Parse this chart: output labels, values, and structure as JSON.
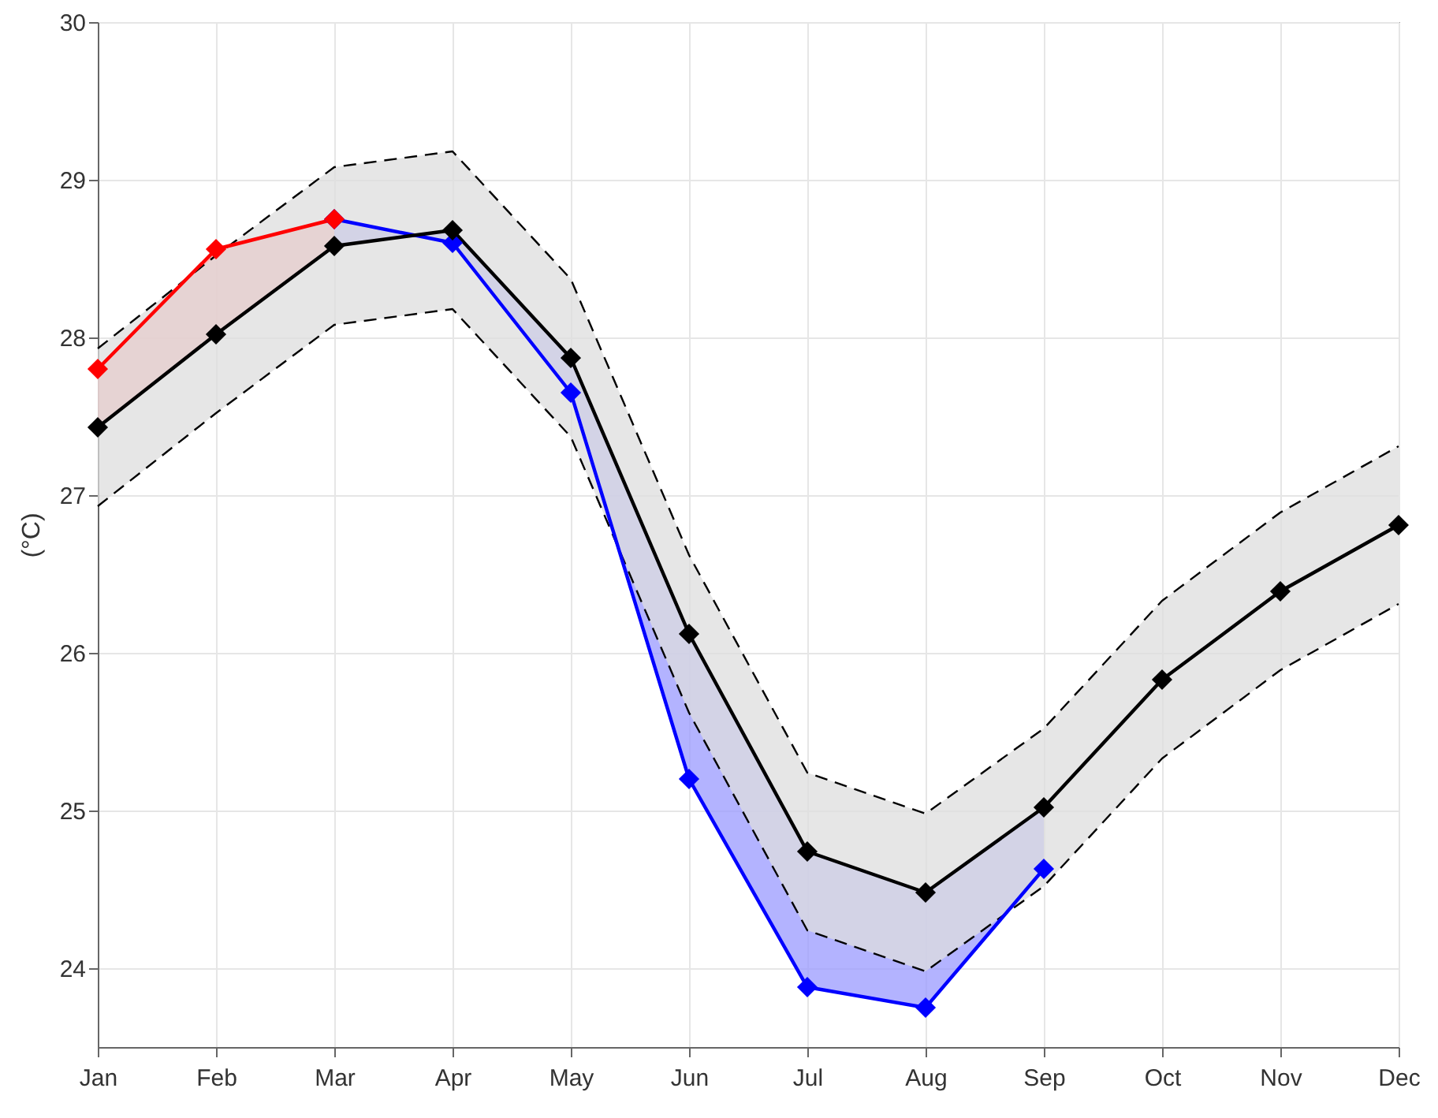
{
  "chart_data": {
    "type": "line",
    "ylabel": "(°C)",
    "categories": [
      "Jan",
      "Feb",
      "Mar",
      "Apr",
      "May",
      "Jun",
      "Jul",
      "Aug",
      "Sep",
      "Oct",
      "Nov",
      "Dec"
    ],
    "series": [
      {
        "color": "#000000",
        "line_style": "dashed",
        "marker": "none",
        "values": [
          27.93,
          28.52,
          29.08,
          29.18,
          28.37,
          26.62,
          25.24,
          24.98,
          25.52,
          26.33,
          26.89,
          27.31
        ]
      },
      {
        "color": "#000000",
        "line_style": "dashed",
        "marker": "none",
        "values": [
          26.93,
          27.52,
          28.08,
          28.18,
          27.37,
          25.62,
          24.24,
          23.98,
          24.52,
          25.33,
          25.89,
          26.31
        ]
      },
      {
        "color": "#0000ff",
        "marker": "diamond",
        "values": [
          null,
          null,
          28.75,
          28.6,
          27.65,
          25.2,
          23.88,
          23.75,
          24.63,
          null,
          null,
          null
        ],
        "lower": [
          null,
          null,
          28.75,
          28.6,
          27.65,
          25.2,
          23.88,
          23.75,
          24.63,
          null,
          null,
          null
        ],
        "upper": [
          null,
          null,
          28.58,
          28.68,
          27.87,
          26.12,
          24.74,
          24.48,
          25.02,
          null,
          null,
          null
        ]
      },
      {
        "color": "#ff0000",
        "marker": "diamond",
        "values": [
          27.8,
          28.56,
          28.75,
          null,
          null,
          null,
          null,
          null,
          null,
          null,
          null,
          null
        ],
        "lower": [
          27.43,
          28.02,
          28.58,
          null,
          null,
          null,
          null,
          null,
          null,
          null,
          null,
          null
        ],
        "upper": [
          27.8,
          28.56,
          28.75,
          null,
          null,
          null,
          null,
          null,
          null,
          null,
          null,
          null
        ]
      },
      {
        "color": "#000000",
        "marker": "diamond",
        "values": [
          27.43,
          28.02,
          28.58,
          28.68,
          27.87,
          26.12,
          24.74,
          24.48,
          25.02,
          25.83,
          26.39,
          26.81
        ],
        "lower": [
          26.93,
          27.52,
          28.08,
          28.18,
          27.37,
          25.62,
          24.24,
          23.98,
          24.52,
          25.33,
          25.89,
          26.31
        ],
        "upper": [
          27.93,
          28.52,
          29.08,
          29.18,
          28.37,
          26.62,
          25.24,
          24.98,
          25.52,
          26.33,
          26.89,
          27.31
        ]
      }
    ],
    "ylim": [
      23.5,
      30
    ],
    "yticks": [
      24,
      25,
      26,
      27,
      28,
      29,
      30
    ],
    "grid": true
  }
}
